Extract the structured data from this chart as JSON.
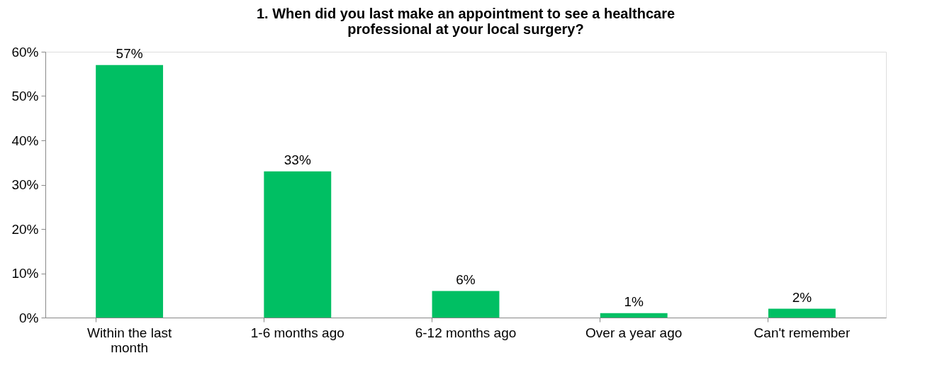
{
  "chart_data": {
    "type": "bar",
    "title": "1. When did you last make an appointment to see a healthcare professional at your local surgery?",
    "categories": [
      "Within the last month",
      "1-6 months ago",
      "6-12 months ago",
      "Over a year ago",
      "Can't remember"
    ],
    "values": [
      57,
      33,
      6,
      1,
      2
    ],
    "value_labels": [
      "57%",
      "33%",
      "6%",
      "1%",
      "2%"
    ],
    "color": "#00bf63",
    "ylim": [
      0,
      60
    ],
    "yticks": [
      {
        "value": 0,
        "label": "0%"
      },
      {
        "value": 10,
        "label": "10%"
      },
      {
        "value": 20,
        "label": "20%"
      },
      {
        "value": 30,
        "label": "30%"
      },
      {
        "value": 40,
        "label": "40%"
      },
      {
        "value": 50,
        "label": "50%"
      },
      {
        "value": 60,
        "label": "60%"
      }
    ],
    "grid": false
  }
}
